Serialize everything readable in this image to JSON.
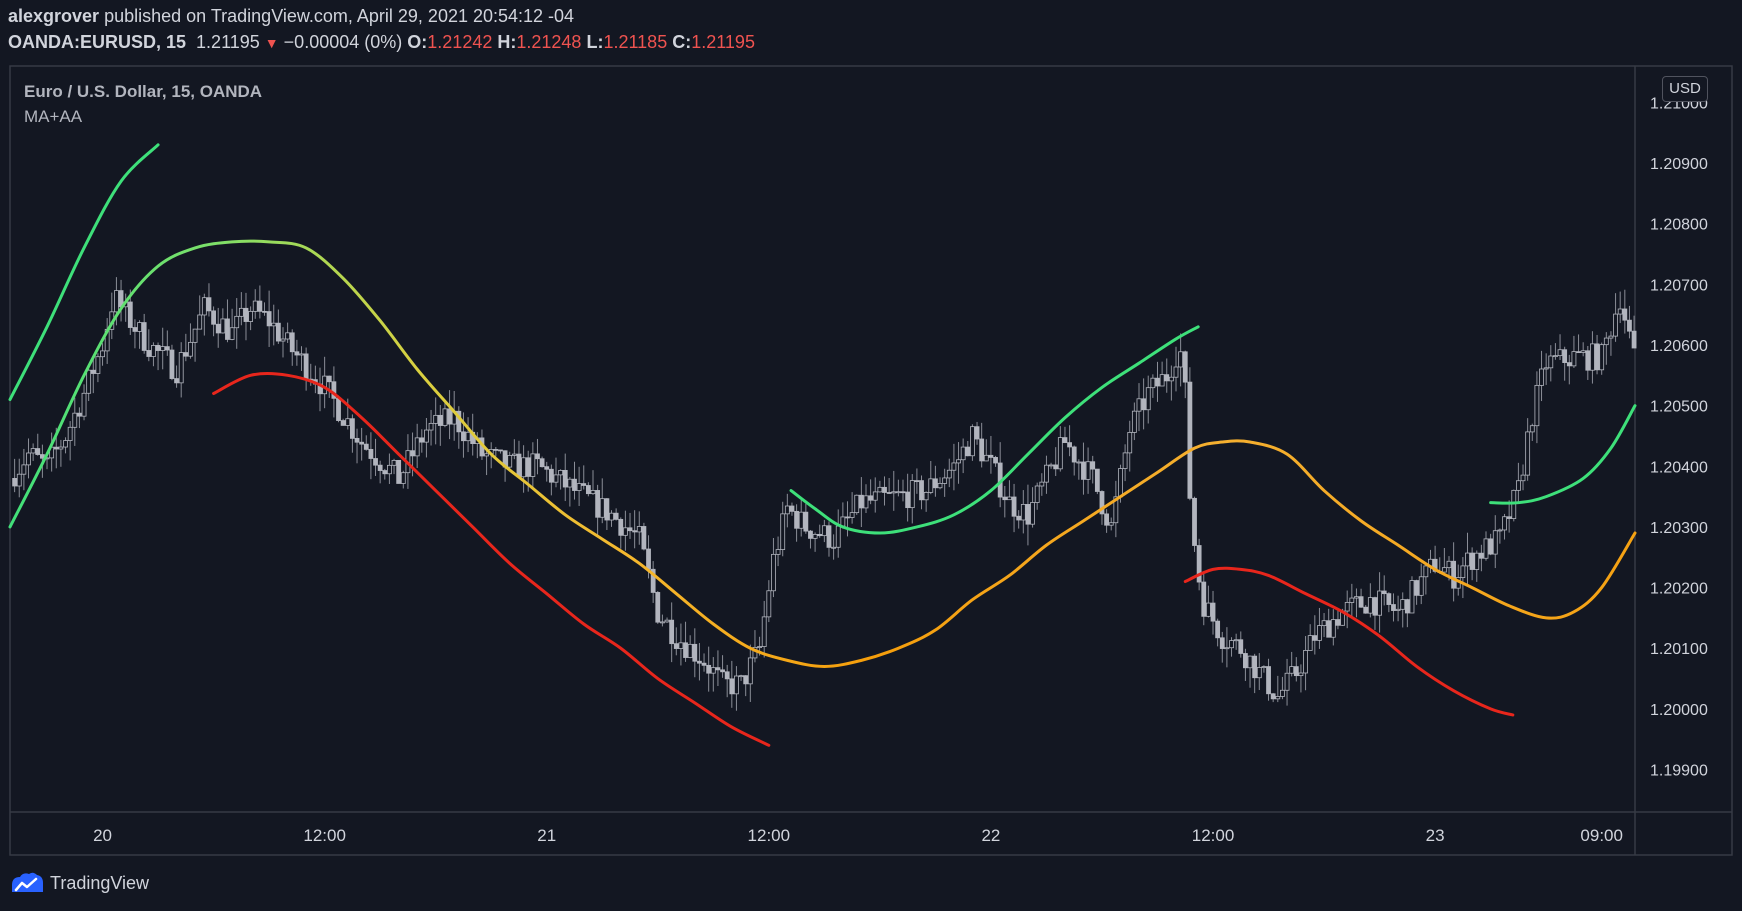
{
  "header": {
    "author": "alexgrover",
    "published_text": " published on TradingView.com, April 29, 2021 20:54:12 -04",
    "symbol": "OANDA:EURUSD, 15",
    "last": "1.21195",
    "change": "−0.00004 (0%)",
    "o_label": "O:",
    "o_value": "1.21242",
    "h_label": "H:",
    "h_value": "1.21248",
    "l_label": "L:",
    "l_value": "1.21185",
    "c_label": "C:",
    "c_value": "1.21195"
  },
  "pane": {
    "title": "Euro / U.S. Dollar, 15, OANDA",
    "indicator": "MA+AA",
    "currency": "USD"
  },
  "footer": {
    "brand": "TradingView"
  },
  "colors": {
    "background": "#131722",
    "border": "#363a45",
    "text": "#d1d4dc",
    "candle": "#b2b5be",
    "bear_red": "#ef5350",
    "band_upper_green": "#3ee07a",
    "band_mid_yellow": "#f5b82e",
    "band_mid_orange": "#f59e0b",
    "band_lower_red": "#e8261c"
  },
  "chart_data": {
    "type": "line",
    "title": "Euro / U.S. Dollar, 15, OANDA",
    "ylim": [
      1.1983,
      1.2106
    ],
    "y_ticks": [
      "1.21000",
      "1.20900",
      "1.20800",
      "1.20700",
      "1.20600",
      "1.20500",
      "1.20400",
      "1.20300",
      "1.20200",
      "1.20100",
      "1.20000",
      "1.19900"
    ],
    "x_ticks": [
      "20",
      "12:00",
      "21",
      "12:00",
      "22",
      "12:00",
      "23",
      "09:00"
    ],
    "x_tick_hours": [
      0,
      12,
      24,
      36,
      48,
      60,
      72,
      81
    ],
    "xlim_hours": [
      -5,
      82.8
    ],
    "price_close_keypoints": [
      [
        -5,
        1.2038
      ],
      [
        -4,
        1.2042
      ],
      [
        -3,
        1.204
      ],
      [
        -2,
        1.2045
      ],
      [
        -1,
        1.2052
      ],
      [
        0,
        1.206
      ],
      [
        0.6,
        1.2068
      ],
      [
        1.5,
        1.2064
      ],
      [
        2.5,
        1.206
      ],
      [
        4,
        1.2056
      ],
      [
        5.5,
        1.2066
      ],
      [
        7,
        1.2062
      ],
      [
        8,
        1.2066
      ],
      [
        9,
        1.2064
      ],
      [
        10,
        1.206
      ],
      [
        12,
        1.2053
      ],
      [
        14,
        1.2044
      ],
      [
        16,
        1.2038
      ],
      [
        17.5,
        1.2046
      ],
      [
        19,
        1.2048
      ],
      [
        20.5,
        1.2042
      ],
      [
        22,
        1.204
      ],
      [
        23.5,
        1.204
      ],
      [
        25.5,
        1.2036
      ],
      [
        27.5,
        1.2032
      ],
      [
        29,
        1.2028
      ],
      [
        30,
        1.2016
      ],
      [
        31,
        1.2012
      ],
      [
        32.5,
        1.2008
      ],
      [
        33.5,
        1.2004
      ],
      [
        34.5,
        1.2004
      ],
      [
        35.5,
        1.201
      ],
      [
        36.2,
        1.2024
      ],
      [
        37,
        1.2033
      ],
      [
        38,
        1.203
      ],
      [
        39.5,
        1.2028
      ],
      [
        41,
        1.2034
      ],
      [
        43,
        1.2035
      ],
      [
        44.5,
        1.2036
      ],
      [
        46,
        1.204
      ],
      [
        47,
        1.2045
      ],
      [
        48,
        1.204
      ],
      [
        49,
        1.2034
      ],
      [
        50,
        1.2032
      ],
      [
        51,
        1.2038
      ],
      [
        52,
        1.2044
      ],
      [
        53.5,
        1.2038
      ],
      [
        54.5,
        1.203
      ],
      [
        55.5,
        1.2046
      ],
      [
        56.5,
        1.2052
      ],
      [
        57.5,
        1.2055
      ],
      [
        58.2,
        1.206
      ],
      [
        58.5,
        1.2052
      ],
      [
        58.8,
        1.2032
      ],
      [
        59.4,
        1.2018
      ],
      [
        60.5,
        1.2012
      ],
      [
        61.5,
        1.201
      ],
      [
        62.5,
        1.2006
      ],
      [
        63.5,
        1.2002
      ],
      [
        64.5,
        1.2006
      ],
      [
        65.5,
        1.2012
      ],
      [
        67,
        1.2016
      ],
      [
        68.5,
        1.2018
      ],
      [
        70,
        1.2016
      ],
      [
        71,
        1.202
      ],
      [
        72,
        1.2024
      ],
      [
        73,
        1.2022
      ],
      [
        74,
        1.2025
      ],
      [
        75.5,
        1.2028
      ],
      [
        76.5,
        1.2036
      ],
      [
        77.2,
        1.2048
      ],
      [
        78,
        1.2057
      ],
      [
        79.5,
        1.2058
      ],
      [
        81,
        1.2058
      ],
      [
        82,
        1.2068
      ],
      [
        82.6,
        1.206
      ],
      [
        82.8,
        1.2057
      ]
    ],
    "series": [
      {
        "name": "",
        "color": "#3ee07a",
        "points": [
          [
            -5,
            1.2051
          ],
          [
            -3,
            1.2063
          ],
          [
            -1,
            1.2076
          ],
          [
            1,
            1.2087
          ],
          [
            3,
            1.2093
          ]
        ]
      },
      {
        "name": "",
        "color": "gradient-green-yellow-orange",
        "points": [
          [
            -5,
            1.203
          ],
          [
            -3,
            1.2042
          ],
          [
            -1,
            1.2055
          ],
          [
            1,
            1.2066
          ],
          [
            3,
            1.2073
          ],
          [
            5,
            1.2076
          ],
          [
            7,
            1.2077
          ],
          [
            9,
            1.2077
          ],
          [
            11,
            1.2076
          ],
          [
            13,
            1.2071
          ],
          [
            15,
            1.2064
          ],
          [
            17,
            1.2056
          ],
          [
            19,
            1.2049
          ],
          [
            21,
            1.2042
          ],
          [
            23,
            1.2037
          ],
          [
            25,
            1.2032
          ],
          [
            27,
            1.2028
          ],
          [
            29,
            1.2024
          ],
          [
            31,
            1.2019
          ],
          [
            33,
            1.2014
          ],
          [
            35,
            1.201
          ],
          [
            37,
            1.2008
          ],
          [
            39,
            1.2007
          ],
          [
            41,
            1.2008
          ],
          [
            43,
            1.201
          ],
          [
            45,
            1.2013
          ],
          [
            47,
            1.2018
          ],
          [
            49,
            1.2022
          ],
          [
            51,
            1.2027
          ],
          [
            53,
            1.2031
          ],
          [
            55,
            1.2035
          ],
          [
            57,
            1.2039
          ],
          [
            59,
            1.2043
          ],
          [
            60.5,
            1.2044
          ],
          [
            62,
            1.2044
          ],
          [
            64,
            1.2042
          ],
          [
            66,
            1.2036
          ],
          [
            68,
            1.2031
          ],
          [
            70,
            1.2027
          ],
          [
            72,
            1.2023
          ],
          [
            74,
            1.202
          ],
          [
            76,
            1.2017
          ],
          [
            78,
            1.2015
          ],
          [
            79.5,
            1.2016
          ],
          [
            81,
            1.202
          ],
          [
            82.8,
            1.2029
          ]
        ]
      },
      {
        "name": "",
        "color": "#e8261c",
        "points": [
          [
            6,
            1.2052
          ],
          [
            8,
            1.2055
          ],
          [
            10,
            1.2055
          ],
          [
            12,
            1.2053
          ],
          [
            14,
            1.2048
          ],
          [
            16,
            1.2042
          ],
          [
            18,
            1.2036
          ],
          [
            20,
            1.203
          ],
          [
            22,
            1.2024
          ],
          [
            24,
            1.2019
          ],
          [
            26,
            1.2014
          ],
          [
            28,
            1.201
          ],
          [
            30,
            1.2005
          ],
          [
            32,
            1.2001
          ],
          [
            34,
            1.1997
          ],
          [
            36,
            1.1994
          ]
        ]
      },
      {
        "name": "",
        "color": "#3ee07a",
        "points": [
          [
            37.2,
            1.2036
          ],
          [
            38.5,
            1.2033
          ],
          [
            40,
            1.203
          ],
          [
            42,
            1.2029
          ],
          [
            44,
            1.203
          ],
          [
            46,
            1.2032
          ],
          [
            48,
            1.2036
          ],
          [
            50,
            1.2042
          ],
          [
            52,
            1.2048
          ],
          [
            54,
            1.2053
          ],
          [
            56,
            1.2057
          ],
          [
            58,
            1.2061
          ],
          [
            59.2,
            1.2063
          ]
        ]
      },
      {
        "name": "",
        "color": "#e8261c",
        "points": [
          [
            58.5,
            1.2021
          ],
          [
            60,
            1.2023
          ],
          [
            61.5,
            1.2023
          ],
          [
            63,
            1.2022
          ],
          [
            65,
            1.2019
          ],
          [
            67,
            1.2016
          ],
          [
            69,
            1.2012
          ],
          [
            71,
            1.2007
          ],
          [
            73,
            1.2003
          ],
          [
            75,
            1.2
          ],
          [
            76.2,
            1.1999
          ]
        ]
      },
      {
        "name": "",
        "color": "#3ee07a",
        "points": [
          [
            75,
            1.2034
          ],
          [
            76.5,
            1.2034
          ],
          [
            78,
            1.2035
          ],
          [
            80,
            1.2038
          ],
          [
            81.5,
            1.2043
          ],
          [
            82.8,
            1.205
          ]
        ]
      }
    ]
  }
}
